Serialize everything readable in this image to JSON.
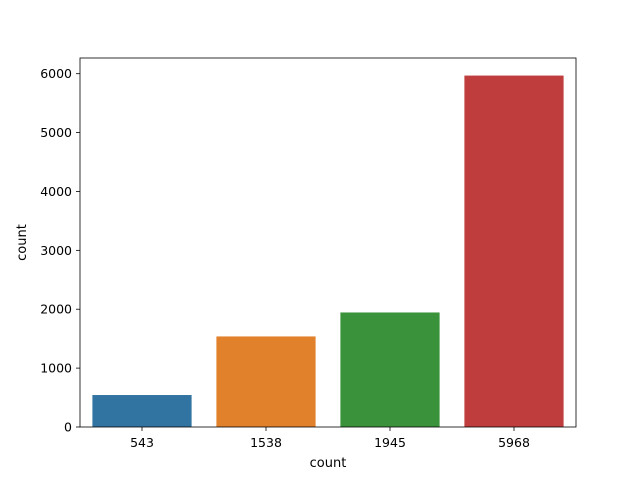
{
  "chart_data": {
    "type": "bar",
    "title": "",
    "xlabel": "count",
    "ylabel": "count",
    "categories": [
      "543",
      "1538",
      "1945",
      "5968"
    ],
    "values": [
      543,
      1538,
      1945,
      5968
    ],
    "colors": [
      "#3274a1",
      "#e1812c",
      "#3a923a",
      "#c03d3e"
    ],
    "ylim": [
      0,
      6266.4
    ],
    "yticks": [
      0,
      1000,
      2000,
      3000,
      4000,
      5000,
      6000
    ],
    "grid": false,
    "legend": "none"
  }
}
